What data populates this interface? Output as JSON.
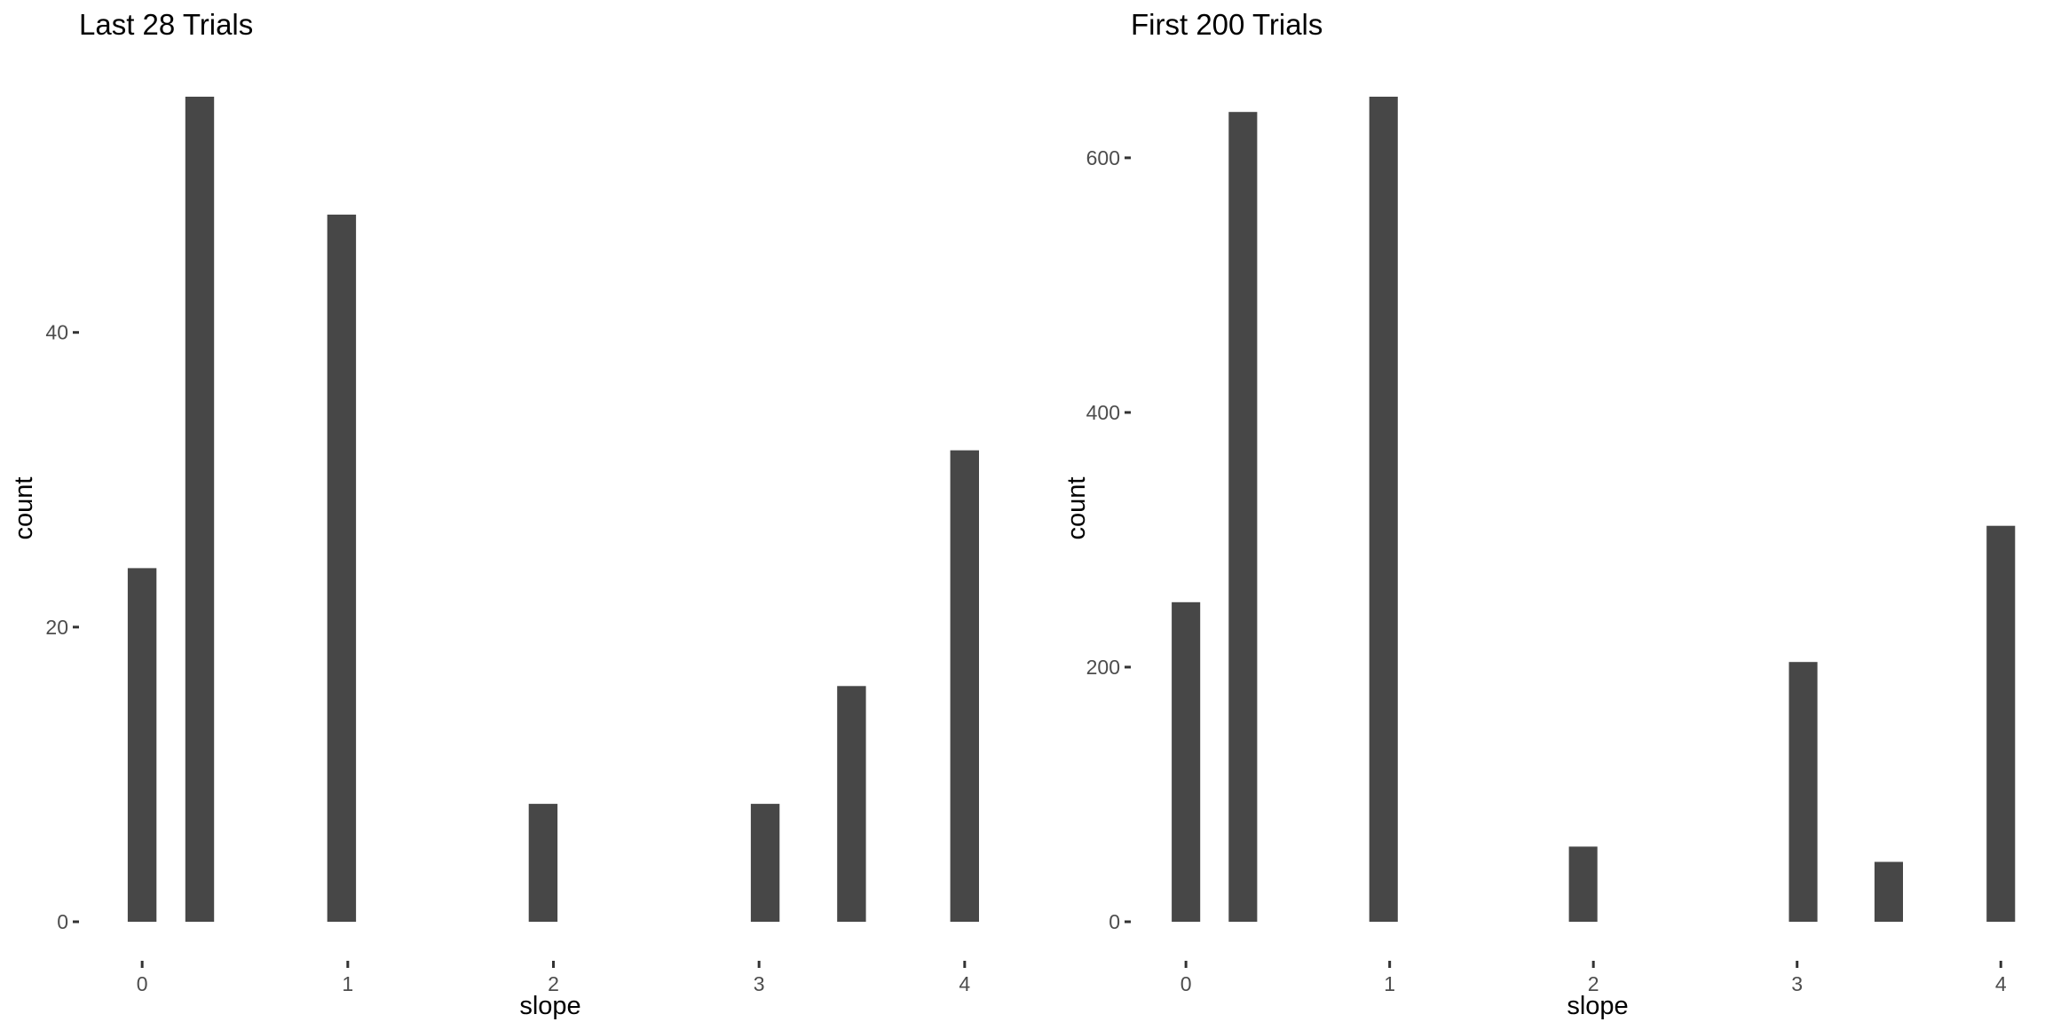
{
  "chart_data": [
    {
      "type": "bar",
      "title": "Last 28 Trials",
      "xlabel": "slope",
      "ylabel": "count",
      "grid": false,
      "xlim": [
        -0.1,
        4.1
      ],
      "ylim": [
        0,
        56
      ],
      "x_ticks": [
        0,
        1,
        2,
        3,
        4
      ],
      "y_ticks": [
        0,
        20,
        40
      ],
      "bar_width": 0.14,
      "x": [
        0,
        0.28,
        0.97,
        1.95,
        3.03,
        3.45,
        4.0
      ],
      "values": [
        24,
        56,
        48,
        8,
        8,
        16,
        32
      ]
    },
    {
      "type": "bar",
      "title": "First 200 Trials",
      "xlabel": "slope",
      "ylabel": "count",
      "grid": false,
      "xlim": [
        -0.14,
        4.06
      ],
      "ylim": [
        0,
        648
      ],
      "x_ticks": [
        0,
        1,
        2,
        3,
        4
      ],
      "y_ticks": [
        0,
        200,
        400,
        600
      ],
      "bar_width": 0.14,
      "x": [
        0,
        0.28,
        0.97,
        1.95,
        3.03,
        3.45,
        4.0
      ],
      "values": [
        251,
        636,
        648,
        59,
        204,
        47,
        311
      ]
    }
  ]
}
